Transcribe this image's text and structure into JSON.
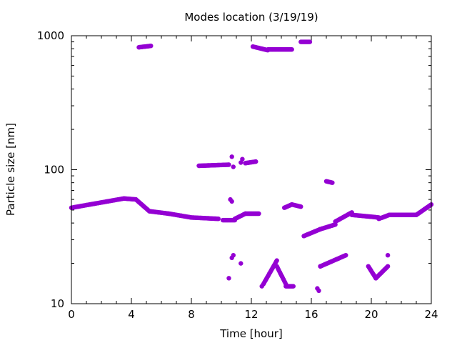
{
  "chart_data": {
    "type": "scatter",
    "title": "Modes location (3/19/19)",
    "xlabel": "Time [hour]",
    "ylabel": "Particle size [nm]",
    "xlim": [
      0,
      24
    ],
    "ylim": [
      10,
      1000
    ],
    "y_scale": "log",
    "grid": false,
    "x_ticks": [
      0,
      4,
      8,
      12,
      16,
      20,
      24
    ],
    "x_tick_labels": [
      "0",
      "4",
      "8",
      "12",
      "16",
      "20",
      "24"
    ],
    "y_ticks": [
      10,
      100,
      1000
    ],
    "y_tick_labels": [
      "10",
      "100",
      "1000"
    ],
    "marker_color": "#9400D3",
    "series": [
      {
        "segments": [
          {
            "x0": 0.0,
            "x1": 3.5,
            "y0": 52,
            "y1": 61
          },
          {
            "x0": 3.5,
            "x1": 4.3,
            "y0": 61,
            "y1": 60
          },
          {
            "x0": 4.3,
            "x1": 5.2,
            "y0": 60,
            "y1": 49
          },
          {
            "x0": 5.2,
            "x1": 6.5,
            "y0": 49,
            "y1": 47
          },
          {
            "x0": 6.5,
            "x1": 8.0,
            "y0": 47,
            "y1": 44
          },
          {
            "x0": 8.0,
            "x1": 9.8,
            "y0": 44,
            "y1": 43
          },
          {
            "x0": 10.1,
            "x1": 10.9,
            "y0": 42,
            "y1": 42
          },
          {
            "x0": 10.9,
            "x1": 11.6,
            "y0": 43,
            "y1": 47
          },
          {
            "x0": 11.6,
            "x1": 12.5,
            "y0": 47,
            "y1": 47
          },
          {
            "x0": 14.2,
            "x1": 14.7,
            "y0": 52,
            "y1": 55
          },
          {
            "x0": 14.7,
            "x1": 15.3,
            "y0": 55,
            "y1": 53
          },
          {
            "x0": 15.5,
            "x1": 16.6,
            "y0": 32,
            "y1": 36
          },
          {
            "x0": 16.6,
            "x1": 17.6,
            "y0": 36,
            "y1": 39
          },
          {
            "x0": 17.6,
            "x1": 18.7,
            "y0": 41,
            "y1": 48
          },
          {
            "x0": 18.7,
            "x1": 20.5,
            "y0": 46,
            "y1": 44
          },
          {
            "x0": 20.5,
            "x1": 21.2,
            "y0": 43,
            "y1": 46
          },
          {
            "x0": 21.2,
            "x1": 23.0,
            "y0": 46,
            "y1": 46
          },
          {
            "x0": 23.0,
            "x1": 24.0,
            "y0": 46,
            "y1": 55
          },
          {
            "x0": 4.5,
            "x1": 5.3,
            "y0": 820,
            "y1": 840
          },
          {
            "x0": 12.1,
            "x1": 13.1,
            "y0": 830,
            "y1": 780
          },
          {
            "x0": 13.1,
            "x1": 14.7,
            "y0": 790,
            "y1": 790
          },
          {
            "x0": 15.3,
            "x1": 15.9,
            "y0": 900,
            "y1": 900
          },
          {
            "x0": 8.5,
            "x1": 10.5,
            "y0": 107,
            "y1": 109
          },
          {
            "x0": 11.6,
            "x1": 12.3,
            "y0": 112,
            "y1": 115
          },
          {
            "x0": 17.0,
            "x1": 17.4,
            "y0": 82,
            "y1": 80
          },
          {
            "x0": 12.8,
            "x1": 13.7,
            "y0": 14,
            "y1": 21
          },
          {
            "x0": 13.7,
            "x1": 14.3,
            "y0": 19,
            "y1": 14
          },
          {
            "x0": 14.3,
            "x1": 14.8,
            "y0": 13.5,
            "y1": 13.5
          },
          {
            "x0": 16.6,
            "x1": 18.3,
            "y0": 19,
            "y1": 23
          },
          {
            "x0": 19.8,
            "x1": 20.3,
            "y0": 19,
            "y1": 15.5
          },
          {
            "x0": 20.3,
            "x1": 21.1,
            "y0": 15.5,
            "y1": 19
          }
        ],
        "points": [
          [
            10.5,
            15.5
          ],
          [
            10.7,
            22
          ],
          [
            10.8,
            23
          ],
          [
            11.3,
            20
          ],
          [
            12.7,
            13.5
          ],
          [
            16.4,
            13
          ],
          [
            16.5,
            12.5
          ],
          [
            21.1,
            23
          ],
          [
            10.6,
            60
          ],
          [
            10.7,
            58
          ],
          [
            10.7,
            125
          ],
          [
            10.8,
            105
          ],
          [
            11.3,
            113
          ],
          [
            11.4,
            120
          ],
          [
            16.6,
            19
          ]
        ]
      }
    ]
  }
}
